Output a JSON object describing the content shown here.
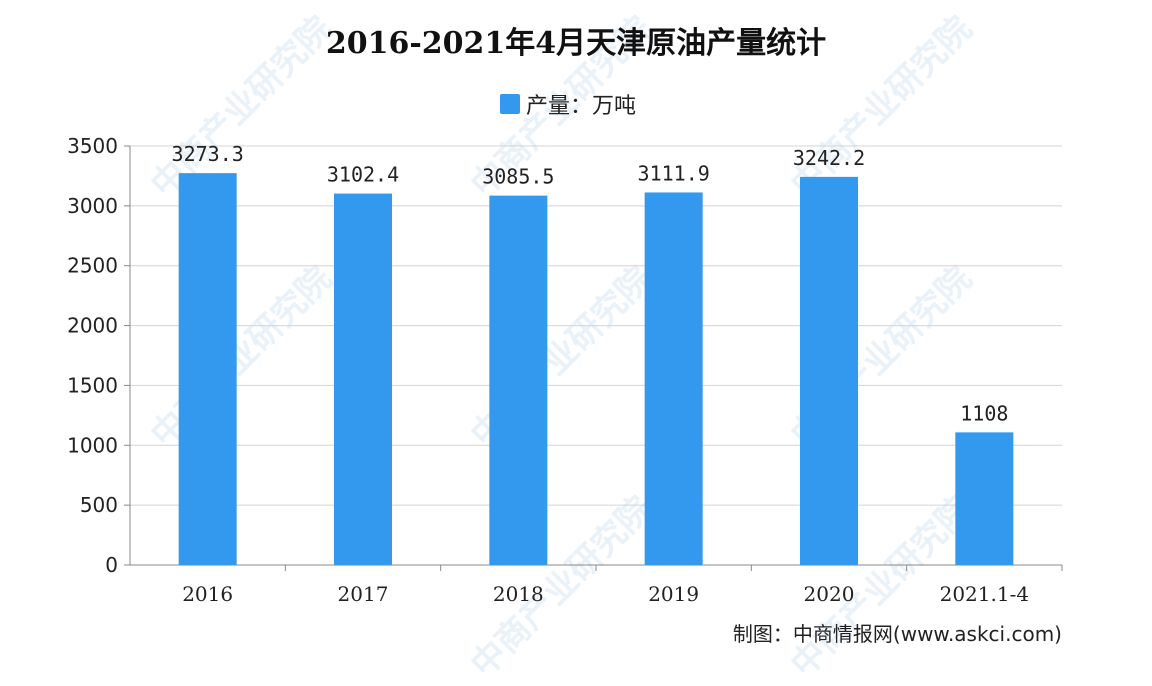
{
  "title": "2016-2021年4月天津原油产量统计",
  "legend_label": "产量：万吨",
  "source": "制图：中商情报网(www.askci.com)",
  "watermark_text": "中商产业研究院",
  "colors": {
    "bar": "#3399ee",
    "grid": "#d4d4d4",
    "axis": "#888888"
  },
  "chart_data": {
    "type": "bar",
    "title": "2016-2021年4月天津原油产量统计",
    "categories": [
      "2016",
      "2017",
      "2018",
      "2019",
      "2020",
      "2021.1-4"
    ],
    "series": [
      {
        "name": "产量：万吨",
        "values": [
          3273.3,
          3102.4,
          3085.5,
          3111.9,
          3242.2,
          1108
        ]
      }
    ],
    "value_labels": [
      "3273.3",
      "3102.4",
      "3085.5",
      "3111.9",
      "3242.2",
      "1108"
    ],
    "ylim": [
      0,
      3500
    ],
    "yticks": [
      0,
      500,
      1000,
      1500,
      2000,
      2500,
      3000,
      3500
    ],
    "grid": true,
    "legend_position": "top-center"
  }
}
